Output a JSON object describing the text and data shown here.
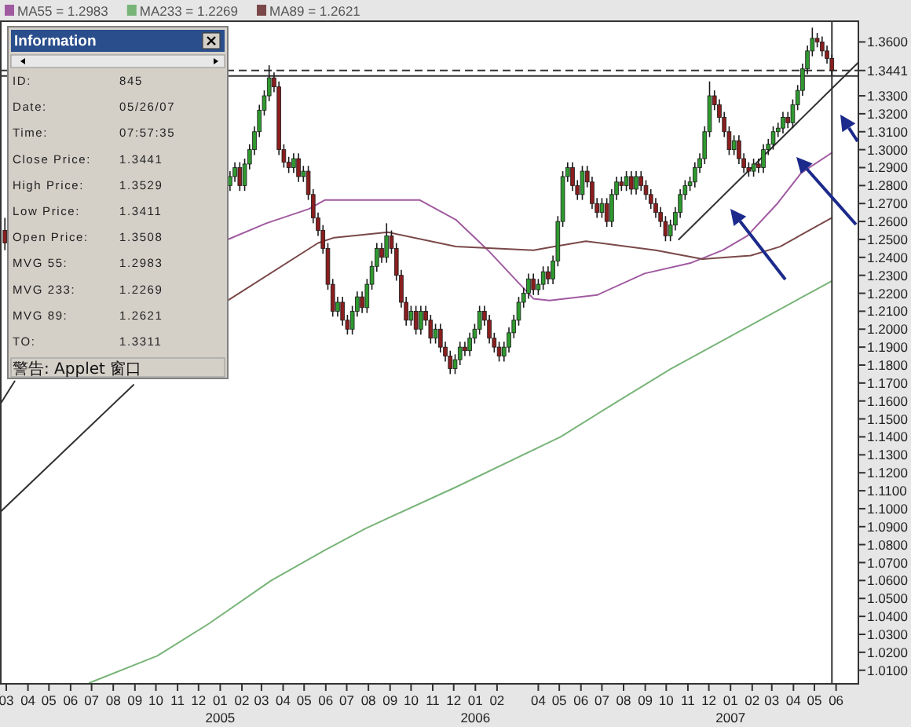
{
  "chart_data": {
    "type": "candlestick",
    "x": [
      "2004-02-28",
      "2005-01-15",
      "2005-01-22",
      "2005-01-29",
      "2005-02-05",
      "2005-02-12",
      "2005-02-19",
      "2005-02-26",
      "2005-03-05",
      "2005-03-12",
      "2005-03-19",
      "2005-03-26",
      "2005-04-02",
      "2005-04-09",
      "2005-04-16",
      "2005-04-23",
      "2005-04-30",
      "2005-05-07",
      "2005-05-14",
      "2005-05-21",
      "2005-05-28",
      "2005-06-04",
      "2005-06-11",
      "2005-06-18",
      "2005-06-25",
      "2005-07-02",
      "2005-07-09",
      "2005-07-16",
      "2005-07-23",
      "2005-07-30",
      "2005-08-06",
      "2005-08-13",
      "2005-08-20",
      "2005-08-27",
      "2005-09-03",
      "2005-09-10",
      "2005-09-17",
      "2005-09-24",
      "2005-10-01",
      "2005-10-08",
      "2005-10-15",
      "2005-10-22",
      "2005-10-29",
      "2005-11-05",
      "2005-11-12",
      "2005-11-19",
      "2005-11-26",
      "2005-12-03",
      "2005-12-10",
      "2005-12-17",
      "2005-12-24",
      "2005-12-31",
      "2006-01-07",
      "2006-01-14",
      "2006-01-21",
      "2006-01-28",
      "2006-02-04",
      "2006-02-11",
      "2006-02-18",
      "2006-02-25",
      "2006-03-04",
      "2006-03-11",
      "2006-03-18",
      "2006-03-25",
      "2006-04-01",
      "2006-04-08",
      "2006-04-15",
      "2006-04-22",
      "2006-04-29",
      "2006-05-06",
      "2006-05-13",
      "2006-05-20",
      "2006-05-27",
      "2006-06-03",
      "2006-06-10",
      "2006-06-17",
      "2006-06-24",
      "2006-07-01",
      "2006-07-08",
      "2006-07-15",
      "2006-07-22",
      "2006-07-29",
      "2006-08-05",
      "2006-08-12",
      "2006-08-19",
      "2006-08-26",
      "2006-09-02",
      "2006-09-09",
      "2006-09-16",
      "2006-09-23",
      "2006-09-30",
      "2006-10-07",
      "2006-10-14",
      "2006-10-21",
      "2006-10-28",
      "2006-11-04",
      "2006-11-11",
      "2006-11-18",
      "2006-11-25",
      "2006-12-02",
      "2006-12-09",
      "2006-12-16",
      "2006-12-23",
      "2006-12-30",
      "2007-01-06",
      "2007-01-13",
      "2007-01-20",
      "2007-01-27",
      "2007-02-03",
      "2007-02-10",
      "2007-02-17",
      "2007-02-24",
      "2007-03-03",
      "2007-03-10",
      "2007-03-17",
      "2007-03-24",
      "2007-03-31",
      "2007-04-07",
      "2007-04-14",
      "2007-04-21",
      "2007-04-28",
      "2007-05-05",
      "2007-05-12",
      "2007-05-19",
      "2007-05-26"
    ],
    "ohlc": [
      [
        1.255,
        1.262,
        1.244,
        1.248
      ],
      [
        1.28,
        1.288,
        1.277,
        1.285
      ],
      [
        1.285,
        1.293,
        1.282,
        1.29
      ],
      [
        1.29,
        1.293,
        1.277,
        1.28
      ],
      [
        1.28,
        1.295,
        1.277,
        1.292
      ],
      [
        1.292,
        1.303,
        1.289,
        1.3
      ],
      [
        1.3,
        1.313,
        1.297,
        1.31
      ],
      [
        1.31,
        1.325,
        1.307,
        1.322
      ],
      [
        1.322,
        1.333,
        1.319,
        1.33
      ],
      [
        1.33,
        1.347,
        1.327,
        1.34
      ],
      [
        1.34,
        1.343,
        1.332,
        1.335
      ],
      [
        1.335,
        1.338,
        1.297,
        1.3
      ],
      [
        1.3,
        1.303,
        1.29,
        1.293
      ],
      [
        1.293,
        1.296,
        1.287,
        1.29
      ],
      [
        1.29,
        1.298,
        1.287,
        1.295
      ],
      [
        1.295,
        1.298,
        1.282,
        1.285
      ],
      [
        1.285,
        1.291,
        1.282,
        1.288
      ],
      [
        1.288,
        1.291,
        1.272,
        1.275
      ],
      [
        1.275,
        1.278,
        1.259,
        1.262
      ],
      [
        1.262,
        1.265,
        1.252,
        1.255
      ],
      [
        1.255,
        1.258,
        1.242,
        1.245
      ],
      [
        1.245,
        1.248,
        1.222,
        1.225
      ],
      [
        1.225,
        1.228,
        1.207,
        1.21
      ],
      [
        1.21,
        1.218,
        1.207,
        1.215
      ],
      [
        1.215,
        1.218,
        1.202,
        1.205
      ],
      [
        1.205,
        1.208,
        1.197,
        1.2
      ],
      [
        1.2,
        1.213,
        1.197,
        1.21
      ],
      [
        1.21,
        1.221,
        1.207,
        1.218
      ],
      [
        1.218,
        1.221,
        1.209,
        1.212
      ],
      [
        1.212,
        1.228,
        1.209,
        1.225
      ],
      [
        1.225,
        1.238,
        1.222,
        1.235
      ],
      [
        1.235,
        1.248,
        1.232,
        1.245
      ],
      [
        1.245,
        1.248,
        1.237,
        1.24
      ],
      [
        1.24,
        1.259,
        1.237,
        1.252
      ],
      [
        1.252,
        1.255,
        1.242,
        1.245
      ],
      [
        1.245,
        1.248,
        1.227,
        1.23
      ],
      [
        1.23,
        1.233,
        1.212,
        1.215
      ],
      [
        1.215,
        1.218,
        1.202,
        1.205
      ],
      [
        1.205,
        1.213,
        1.202,
        1.21
      ],
      [
        1.21,
        1.213,
        1.197,
        1.2
      ],
      [
        1.2,
        1.213,
        1.197,
        1.21
      ],
      [
        1.21,
        1.213,
        1.202,
        1.205
      ],
      [
        1.205,
        1.208,
        1.192,
        1.195
      ],
      [
        1.195,
        1.203,
        1.192,
        1.2
      ],
      [
        1.2,
        1.203,
        1.187,
        1.19
      ],
      [
        1.19,
        1.193,
        1.182,
        1.185
      ],
      [
        1.185,
        1.188,
        1.175,
        1.178
      ],
      [
        1.178,
        1.186,
        1.175,
        1.183
      ],
      [
        1.183,
        1.193,
        1.18,
        1.19
      ],
      [
        1.19,
        1.193,
        1.185,
        1.188
      ],
      [
        1.188,
        1.198,
        1.185,
        1.195
      ],
      [
        1.195,
        1.203,
        1.192,
        1.2
      ],
      [
        1.2,
        1.213,
        1.197,
        1.21
      ],
      [
        1.21,
        1.213,
        1.202,
        1.205
      ],
      [
        1.205,
        1.208,
        1.192,
        1.195
      ],
      [
        1.195,
        1.198,
        1.187,
        1.19
      ],
      [
        1.19,
        1.193,
        1.182,
        1.185
      ],
      [
        1.185,
        1.193,
        1.182,
        1.19
      ],
      [
        1.19,
        1.201,
        1.187,
        1.198
      ],
      [
        1.198,
        1.208,
        1.195,
        1.205
      ],
      [
        1.205,
        1.218,
        1.202,
        1.215
      ],
      [
        1.215,
        1.223,
        1.212,
        1.22
      ],
      [
        1.22,
        1.231,
        1.217,
        1.228
      ],
      [
        1.228,
        1.231,
        1.219,
        1.222
      ],
      [
        1.222,
        1.228,
        1.219,
        1.225
      ],
      [
        1.225,
        1.235,
        1.222,
        1.232
      ],
      [
        1.232,
        1.235,
        1.225,
        1.228
      ],
      [
        1.228,
        1.241,
        1.225,
        1.238
      ],
      [
        1.238,
        1.263,
        1.235,
        1.26
      ],
      [
        1.26,
        1.288,
        1.257,
        1.285
      ],
      [
        1.285,
        1.293,
        1.282,
        1.29
      ],
      [
        1.29,
        1.293,
        1.277,
        1.28
      ],
      [
        1.28,
        1.283,
        1.272,
        1.275
      ],
      [
        1.275,
        1.291,
        1.272,
        1.288
      ],
      [
        1.288,
        1.291,
        1.279,
        1.282
      ],
      [
        1.282,
        1.285,
        1.267,
        1.27
      ],
      [
        1.27,
        1.273,
        1.262,
        1.265
      ],
      [
        1.265,
        1.273,
        1.262,
        1.27
      ],
      [
        1.27,
        1.273,
        1.257,
        1.26
      ],
      [
        1.26,
        1.278,
        1.257,
        1.275
      ],
      [
        1.275,
        1.285,
        1.272,
        1.282
      ],
      [
        1.282,
        1.285,
        1.277,
        1.28
      ],
      [
        1.28,
        1.288,
        1.277,
        1.285
      ],
      [
        1.285,
        1.288,
        1.275,
        1.278
      ],
      [
        1.278,
        1.288,
        1.275,
        1.285
      ],
      [
        1.285,
        1.288,
        1.277,
        1.28
      ],
      [
        1.28,
        1.283,
        1.272,
        1.275
      ],
      [
        1.275,
        1.278,
        1.267,
        1.27
      ],
      [
        1.27,
        1.273,
        1.262,
        1.265
      ],
      [
        1.265,
        1.268,
        1.257,
        1.26
      ],
      [
        1.26,
        1.263,
        1.249,
        1.252
      ],
      [
        1.252,
        1.261,
        1.249,
        1.258
      ],
      [
        1.258,
        1.268,
        1.255,
        1.265
      ],
      [
        1.265,
        1.278,
        1.262,
        1.275
      ],
      [
        1.275,
        1.283,
        1.272,
        1.28
      ],
      [
        1.28,
        1.285,
        1.277,
        1.282
      ],
      [
        1.282,
        1.293,
        1.279,
        1.29
      ],
      [
        1.29,
        1.298,
        1.287,
        1.295
      ],
      [
        1.295,
        1.313,
        1.292,
        1.31
      ],
      [
        1.31,
        1.338,
        1.307,
        1.33
      ],
      [
        1.33,
        1.333,
        1.322,
        1.325
      ],
      [
        1.325,
        1.328,
        1.315,
        1.318
      ],
      [
        1.318,
        1.321,
        1.307,
        1.31
      ],
      [
        1.31,
        1.313,
        1.297,
        1.3
      ],
      [
        1.3,
        1.308,
        1.297,
        1.305
      ],
      [
        1.305,
        1.308,
        1.292,
        1.295
      ],
      [
        1.295,
        1.298,
        1.287,
        1.29
      ],
      [
        1.29,
        1.293,
        1.285,
        1.288
      ],
      [
        1.288,
        1.295,
        1.285,
        1.292
      ],
      [
        1.292,
        1.295,
        1.287,
        1.29
      ],
      [
        1.29,
        1.303,
        1.287,
        1.3
      ],
      [
        1.3,
        1.306,
        1.297,
        1.303
      ],
      [
        1.303,
        1.313,
        1.3,
        1.31
      ],
      [
        1.31,
        1.315,
        1.307,
        1.312
      ],
      [
        1.312,
        1.321,
        1.309,
        1.318
      ],
      [
        1.318,
        1.321,
        1.312,
        1.315
      ],
      [
        1.315,
        1.328,
        1.312,
        1.325
      ],
      [
        1.325,
        1.336,
        1.322,
        1.333
      ],
      [
        1.333,
        1.348,
        1.33,
        1.345
      ],
      [
        1.345,
        1.358,
        1.342,
        1.355
      ],
      [
        1.355,
        1.368,
        1.352,
        1.362
      ],
      [
        1.362,
        1.365,
        1.357,
        1.36
      ],
      [
        1.36,
        1.363,
        1.352,
        1.355
      ],
      [
        1.355,
        1.358,
        1.348,
        1.3508
      ],
      [
        1.3508,
        1.3529,
        1.3411,
        1.3441
      ]
    ],
    "series": [
      {
        "name": "MA55 = 1.2983",
        "type": "line",
        "color": "#a05aa0",
        "x": [
          "2005-01-12",
          "2005-03-08",
          "2005-05-08",
          "2005-05-31",
          "2005-10-13",
          "2005-12-04",
          "2006-01-19",
          "2006-03-25",
          "2006-04-17",
          "2006-06-24",
          "2006-08-31",
          "2006-11-06",
          "2006-12-21",
          "2007-01-25",
          "2007-03-09",
          "2007-04-12",
          "2007-05-26"
        ],
        "values": [
          1.25,
          1.259,
          1.267,
          1.272,
          1.272,
          1.261,
          1.244,
          1.217,
          1.216,
          1.219,
          1.231,
          1.237,
          1.244,
          1.252,
          1.27,
          1.287,
          1.2983
        ]
      },
      {
        "name": "MA233 = 1.2269",
        "type": "line",
        "color": "#78b478",
        "x": [
          "2004-06-28",
          "2004-10-03",
          "2004-12-16",
          "2005-03-15",
          "2005-05-31",
          "2005-07-28",
          "2005-12-04",
          "2006-05-03",
          "2006-07-16",
          "2006-10-08",
          "2007-05-26"
        ],
        "values": [
          1.003,
          1.018,
          1.036,
          1.06,
          1.077,
          1.089,
          1.112,
          1.14,
          1.158,
          1.178,
          1.2269
        ]
      },
      {
        "name": "MA89 = 1.2621",
        "type": "line",
        "color": "#7a4848",
        "x": [
          "2005-01-12",
          "2005-05-21",
          "2005-06-13",
          "2005-08-29",
          "2005-12-04",
          "2006-03-25",
          "2006-04-24",
          "2006-06-08",
          "2006-09-16",
          "2006-11-22",
          "2007-01-30",
          "2007-03-13",
          "2007-05-26"
        ],
        "values": [
          1.216,
          1.248,
          1.251,
          1.254,
          1.246,
          1.244,
          1.246,
          1.249,
          1.244,
          1.239,
          1.241,
          1.246,
          1.2621
        ]
      },
      {
        "type": "line",
        "color": "#333333",
        "x": [
          "2004-02-21",
          "2004-03-13"
        ],
        "values": [
          1.158,
          1.171
        ]
      },
      {
        "type": "line",
        "color": "#333333",
        "x": [
          "2004-02-21",
          "2004-08-30"
        ],
        "values": [
          1.098,
          1.169
        ]
      },
      {
        "type": "line",
        "color": "#333333",
        "x": [
          "2006-10-19",
          "2007-07-04"
        ],
        "values": [
          1.25,
          1.349
        ]
      }
    ],
    "ref_lines": [
      {
        "axis": "y",
        "value": 1.3441,
        "color": "#333333",
        "line_style": "dashed"
      },
      {
        "axis": "y",
        "value": 1.3411,
        "color": "#333333",
        "line_style": "solid"
      },
      {
        "axis": "x",
        "value": "2007-05-26",
        "color": "#333333",
        "line_style": "solid"
      }
    ],
    "xlim": [
      "2004-02-21",
      "2007-07-04"
    ],
    "ylim": [
      1.002,
      1.372
    ],
    "xticks": [
      {
        "value": "2004-03-01",
        "label": "03"
      },
      {
        "value": "2004-04-01",
        "label": "04"
      },
      {
        "value": "2004-05-01",
        "label": "05"
      },
      {
        "value": "2004-06-01",
        "label": "06"
      },
      {
        "value": "2004-07-01",
        "label": "07"
      },
      {
        "value": "2004-08-01",
        "label": "08"
      },
      {
        "value": "2004-09-01",
        "label": "09"
      },
      {
        "value": "2004-10-01",
        "label": "10"
      },
      {
        "value": "2004-11-01",
        "label": "11"
      },
      {
        "value": "2004-12-01",
        "label": "12"
      },
      {
        "value": "2005-01-01",
        "label": "01\n2005"
      },
      {
        "value": "2005-02-01",
        "label": "02"
      },
      {
        "value": "2005-03-01",
        "label": "03"
      },
      {
        "value": "2005-04-01",
        "label": "04"
      },
      {
        "value": "2005-05-01",
        "label": "05"
      },
      {
        "value": "2005-06-01",
        "label": "06"
      },
      {
        "value": "2005-07-01",
        "label": "07"
      },
      {
        "value": "2005-08-01",
        "label": "08"
      },
      {
        "value": "2005-09-01",
        "label": "09"
      },
      {
        "value": "2005-10-01",
        "label": "10"
      },
      {
        "value": "2005-11-01",
        "label": "11"
      },
      {
        "value": "2005-12-01",
        "label": "12"
      },
      {
        "value": "2006-01-01",
        "label": "01\n2006"
      },
      {
        "value": "2006-02-01",
        "label": "02"
      },
      {
        "value": "2006-04-01",
        "label": "04"
      },
      {
        "value": "2006-05-01",
        "label": "05"
      },
      {
        "value": "2006-06-01",
        "label": "06"
      },
      {
        "value": "2006-07-01",
        "label": "07"
      },
      {
        "value": "2006-08-01",
        "label": "08"
      },
      {
        "value": "2006-09-01",
        "label": "09"
      },
      {
        "value": "2006-10-01",
        "label": "10"
      },
      {
        "value": "2006-11-01",
        "label": "11"
      },
      {
        "value": "2006-12-01",
        "label": "12"
      },
      {
        "value": "2007-01-01",
        "label": "01\n2007"
      },
      {
        "value": "2007-02-01",
        "label": "02"
      },
      {
        "value": "2007-03-01",
        "label": "03"
      },
      {
        "value": "2007-04-01",
        "label": "04"
      },
      {
        "value": "2007-05-01",
        "label": "05"
      },
      {
        "value": "2007-06-01",
        "label": "06"
      }
    ],
    "yticks": [
      {
        "value": 1.36,
        "label": "1.3600"
      },
      {
        "value": 1.3441,
        "label": "1.3441"
      },
      {
        "value": 1.33,
        "label": "1.3300"
      },
      {
        "value": 1.32,
        "label": "1.3200"
      },
      {
        "value": 1.31,
        "label": "1.3100"
      },
      {
        "value": 1.3,
        "label": "1.3000"
      },
      {
        "value": 1.29,
        "label": "1.2900"
      },
      {
        "value": 1.28,
        "label": "1.2800"
      },
      {
        "value": 1.27,
        "label": "1.2700"
      },
      {
        "value": 1.26,
        "label": "1.2600"
      },
      {
        "value": 1.25,
        "label": "1.2500"
      },
      {
        "value": 1.24,
        "label": "1.2400"
      },
      {
        "value": 1.23,
        "label": "1.2300"
      },
      {
        "value": 1.22,
        "label": "1.2200"
      },
      {
        "value": 1.21,
        "label": "1.2100"
      },
      {
        "value": 1.2,
        "label": "1.2000"
      },
      {
        "value": 1.19,
        "label": "1.1900"
      },
      {
        "value": 1.18,
        "label": "1.1800"
      },
      {
        "value": 1.17,
        "label": "1.1700"
      },
      {
        "value": 1.16,
        "label": "1.1600"
      },
      {
        "value": 1.15,
        "label": "1.1500"
      },
      {
        "value": 1.14,
        "label": "1.1400"
      },
      {
        "value": 1.13,
        "label": "1.1300"
      },
      {
        "value": 1.12,
        "label": "1.1200"
      },
      {
        "value": 1.11,
        "label": "1.1100"
      },
      {
        "value": 1.1,
        "label": "1.1000"
      },
      {
        "value": 1.09,
        "label": "1.0900"
      },
      {
        "value": 1.08,
        "label": "1.0800"
      },
      {
        "value": 1.07,
        "label": "1.0700"
      },
      {
        "value": 1.06,
        "label": "1.0600"
      },
      {
        "value": 1.05,
        "label": "1.0500"
      },
      {
        "value": 1.04,
        "label": "1.0400"
      },
      {
        "value": 1.03,
        "label": "1.0300"
      },
      {
        "value": 1.02,
        "label": "1.0200"
      },
      {
        "value": 1.01,
        "label": "1.0100"
      }
    ],
    "legend": "top left",
    "annotations": [
      "Information",
      "ID:",
      "845",
      "Date:",
      "05/26/07",
      "Time:",
      "07:57:35",
      "Close Price:",
      "1.3441",
      "High Price:",
      "1.3529",
      "Low Price:",
      "1.3411",
      "Open Price:",
      "1.3508",
      "MVG 55:",
      "1.2983",
      "MVG 233:",
      "1.2269",
      "MVG 89:",
      "1.2621",
      "TO:",
      "1.3311",
      "警告: Applet 窗口"
    ]
  }
}
